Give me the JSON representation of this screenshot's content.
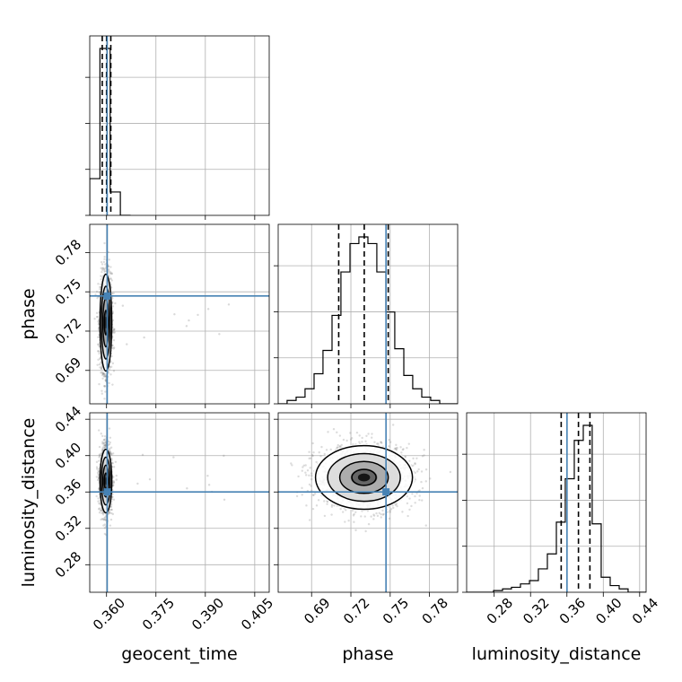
{
  "chart_data": {
    "type": "corner",
    "parameters": [
      "geocent_time",
      "phase",
      "luminosity_distance"
    ],
    "truth": {
      "geocent_time": 0.3602,
      "phase": 0.7468,
      "luminosity_distance": 0.3601
    },
    "colors": {
      "truth": "#4682b4",
      "contour": "#000000",
      "grid": "#b0b0b0",
      "points": "#808080"
    },
    "grid": true,
    "ranges": {
      "geocent_time": [
        0.3549,
        0.4094
      ],
      "phase": [
        0.6645,
        0.8015
      ],
      "luminosity_distance": [
        0.2497,
        0.4471
      ]
    },
    "ticks": {
      "geocent_time": [
        0.36,
        0.375,
        0.39,
        0.405
      ],
      "phase": [
        0.69,
        0.72,
        0.75,
        0.78
      ],
      "luminosity_distance": [
        0.28,
        0.32,
        0.36,
        0.4,
        0.44
      ]
    },
    "tick_labels": {
      "geocent_time": [
        "0.360",
        "0.375",
        "0.390",
        "0.405"
      ],
      "phase": [
        "0.69",
        "0.72",
        "0.75",
        "0.78"
      ],
      "luminosity_distance": [
        "0.28",
        "0.32",
        "0.36",
        "0.40",
        "0.44"
      ]
    },
    "axis_labels": {
      "geocent_time": "geocent_time",
      "phase": "phase",
      "luminosity_distance": "luminosity_distance"
    },
    "histograms": {
      "geocent_time": {
        "bins": [
          0.3549,
          0.358,
          0.3611,
          0.3642,
          0.3673
        ],
        "counts": [
          0.22,
          1.0,
          0.14,
          0.0
        ],
        "quantiles": [
          0.3587,
          0.36,
          0.3613
        ]
      },
      "phase": {
        "bins": [
          0.6645,
          0.6713,
          0.6782,
          0.685,
          0.6919,
          0.6987,
          0.7056,
          0.7124,
          0.7193,
          0.7261,
          0.733,
          0.7398,
          0.7467,
          0.7535,
          0.7604,
          0.7672,
          0.7741,
          0.7809,
          0.7878,
          0.7946,
          0.8015
        ],
        "counts": [
          0.0,
          0.02,
          0.04,
          0.09,
          0.18,
          0.32,
          0.53,
          0.79,
          0.96,
          1.0,
          0.96,
          0.79,
          0.55,
          0.33,
          0.17,
          0.09,
          0.04,
          0.02,
          0.0,
          0.0
        ],
        "quantiles": [
          0.7107,
          0.7302,
          0.7485
        ]
      },
      "luminosity_distance": {
        "bins": [
          0.2497,
          0.2596,
          0.2694,
          0.2793,
          0.2892,
          0.299,
          0.3089,
          0.3188,
          0.3286,
          0.3385,
          0.3484,
          0.3582,
          0.3681,
          0.378,
          0.3878,
          0.3977,
          0.4076,
          0.4175,
          0.4273,
          0.4372,
          0.4471
        ],
        "counts": [
          0.0,
          0.0,
          0.0,
          0.01,
          0.02,
          0.03,
          0.05,
          0.07,
          0.14,
          0.23,
          0.42,
          0.68,
          0.91,
          1.0,
          0.41,
          0.09,
          0.04,
          0.02,
          0.0,
          0.0
        ],
        "quantiles": [
          0.3537,
          0.3727,
          0.3853
        ]
      }
    },
    "pairs": [
      {
        "x": "geocent_time",
        "y": "phase",
        "center": [
          0.3598,
          0.7265
        ],
        "sigma": [
          0.0009,
          0.0185
        ]
      },
      {
        "x": "geocent_time",
        "y": "luminosity_distance",
        "center": [
          0.3598,
          0.372
        ],
        "sigma": [
          0.0009,
          0.0175
        ]
      },
      {
        "x": "phase",
        "y": "luminosity_distance",
        "center": [
          0.73,
          0.376
        ],
        "sigma": [
          0.0185,
          0.0175
        ]
      }
    ]
  }
}
